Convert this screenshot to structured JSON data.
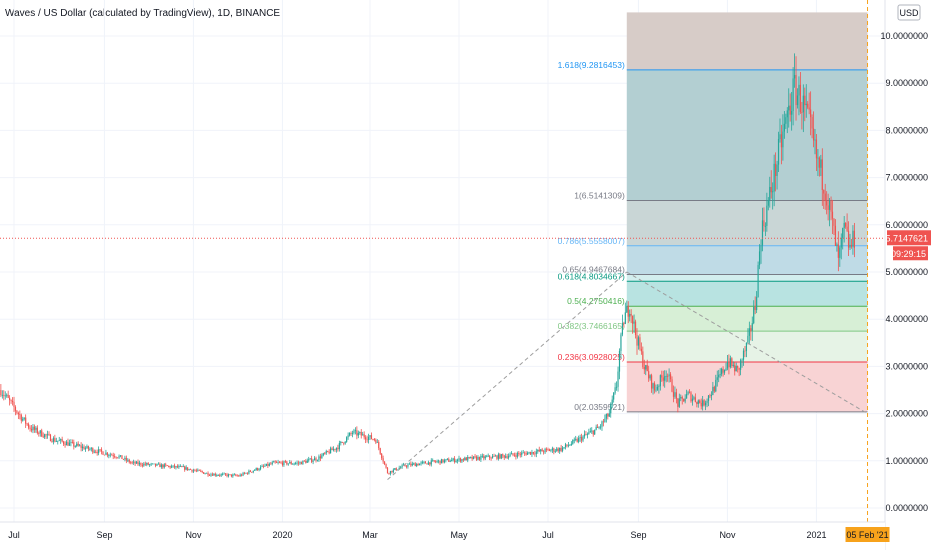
{
  "title": "Waves / US Dollar (calculated by TradingView), 1D, BINANCE",
  "colors": {
    "up": "#26a69a",
    "down": "#ef5350",
    "grid": "#f0f3fa",
    "axis_text": "#131722",
    "price_line": "#ef5350",
    "time_marker": "#f7a21b",
    "trend": "#9e9e9e"
  },
  "chart_data": {
    "type": "candlestick",
    "title": "Waves / US Dollar (calculated by TradingView), 1D, BINANCE",
    "currency_label": "USD",
    "y_axis": {
      "ylim": [
        -0.3,
        10.5
      ],
      "ticks": [
        {
          "value": 0,
          "label": "0.0000000"
        },
        {
          "value": 1,
          "label": "1.0000000"
        },
        {
          "value": 2,
          "label": "2.0000000"
        },
        {
          "value": 3,
          "label": "3.0000000"
        },
        {
          "value": 4,
          "label": "4.0000000"
        },
        {
          "value": 5,
          "label": "5.0000000"
        },
        {
          "value": 6,
          "label": "6.0000000"
        },
        {
          "value": 7,
          "label": "7.0000000"
        },
        {
          "value": 8,
          "label": "8.0000000"
        },
        {
          "value": 9,
          "label": "9.0000000"
        },
        {
          "value": 10,
          "label": "10.0000000"
        }
      ]
    },
    "x_axis": {
      "start": "2019-07-01",
      "end": "2021-02-05",
      "ticks": [
        {
          "date": "2019-07-01",
          "label": "Jul"
        },
        {
          "date": "2019-09-01",
          "label": "Sep"
        },
        {
          "date": "2019-11-01",
          "label": "Nov"
        },
        {
          "date": "2020-01-01",
          "label": "2020"
        },
        {
          "date": "2020-03-01",
          "label": "Mar"
        },
        {
          "date": "2020-05-01",
          "label": "May"
        },
        {
          "date": "2020-07-01",
          "label": "Jul"
        },
        {
          "date": "2020-09-01",
          "label": "Sep"
        },
        {
          "date": "2020-11-01",
          "label": "Nov"
        },
        {
          "date": "2021-01-01",
          "label": "2021"
        }
      ]
    },
    "price_path": [
      [
        "2019-06-22",
        2.5
      ],
      [
        "2019-07-04",
        2.0
      ],
      [
        "2019-07-12",
        1.7
      ],
      [
        "2019-07-28",
        1.45
      ],
      [
        "2019-08-15",
        1.3
      ],
      [
        "2019-09-10",
        1.1
      ],
      [
        "2019-09-20",
        0.95
      ],
      [
        "2019-10-08",
        0.9
      ],
      [
        "2019-10-25",
        0.85
      ],
      [
        "2019-11-12",
        0.72
      ],
      [
        "2019-12-02",
        0.68
      ],
      [
        "2019-12-12",
        0.8
      ],
      [
        "2019-12-26",
        0.95
      ],
      [
        "2020-01-12",
        0.95
      ],
      [
        "2020-01-25",
        1.05
      ],
      [
        "2020-02-08",
        1.3
      ],
      [
        "2020-02-18",
        1.6
      ],
      [
        "2020-03-05",
        1.45
      ],
      [
        "2020-03-13",
        0.75
      ],
      [
        "2020-03-25",
        0.9
      ],
      [
        "2020-04-15",
        0.98
      ],
      [
        "2020-05-10",
        1.05
      ],
      [
        "2020-06-01",
        1.1
      ],
      [
        "2020-06-25",
        1.2
      ],
      [
        "2020-07-10",
        1.25
      ],
      [
        "2020-07-22",
        1.45
      ],
      [
        "2020-08-05",
        1.7
      ],
      [
        "2020-08-12",
        2.0
      ],
      [
        "2020-08-17",
        2.6
      ],
      [
        "2020-08-19",
        3.3
      ],
      [
        "2020-08-22",
        4.0
      ],
      [
        "2020-08-26",
        4.3
      ],
      [
        "2020-08-30",
        3.7
      ],
      [
        "2020-09-05",
        3.0
      ],
      [
        "2020-09-12",
        2.5
      ],
      [
        "2020-09-20",
        2.9
      ],
      [
        "2020-09-28",
        2.2
      ],
      [
        "2020-10-05",
        2.4
      ],
      [
        "2020-10-15",
        2.2
      ],
      [
        "2020-10-22",
        2.5
      ],
      [
        "2020-11-01",
        3.1
      ],
      [
        "2020-11-08",
        2.9
      ],
      [
        "2020-11-15",
        3.5
      ],
      [
        "2020-11-20",
        4.3
      ],
      [
        "2020-11-24",
        5.8
      ],
      [
        "2020-11-30",
        6.6
      ],
      [
        "2020-12-06",
        7.5
      ],
      [
        "2020-12-12",
        8.3
      ],
      [
        "2020-12-17",
        8.9
      ],
      [
        "2020-12-22",
        8.6
      ],
      [
        "2020-12-27",
        8.1
      ],
      [
        "2021-01-01",
        7.4
      ],
      [
        "2021-01-07",
        6.8
      ],
      [
        "2021-01-12",
        6.0
      ],
      [
        "2021-01-16",
        5.2
      ],
      [
        "2021-01-20",
        5.9
      ],
      [
        "2021-01-24",
        5.5
      ],
      [
        "2021-01-27",
        5.7147621
      ]
    ],
    "last_price": {
      "value": 5.7147621,
      "label": "5.7147621",
      "countdown": "09:29:15"
    },
    "time_marker": {
      "date": "2021-02-05",
      "label": "05 Feb '21"
    },
    "trend_line": [
      {
        "date": "2020-03-13",
        "value": 0.6
      },
      {
        "date": "2020-08-24",
        "value": 5.0
      },
      {
        "date": "2021-02-05",
        "value": 2.0
      }
    ],
    "fibonacci": {
      "start_date": "2020-08-24",
      "end_date": "2021-02-05",
      "top_bound": 10.5,
      "levels": [
        {
          "value": 9.2816453,
          "label": "1.618(9.2816453)",
          "color": "#2196f3",
          "fill": "#d7ccc8"
        },
        {
          "value": 6.5141309,
          "label": "1(6.5141309)",
          "color": "#787b86",
          "fill": "#b3cfd2"
        },
        {
          "value": 5.5558007,
          "label": "0.786(5.5558007)",
          "color": "#64b5f6",
          "fill": "#c9d6d6"
        },
        {
          "value": 4.9467684,
          "label": "0.65(4.9467684)",
          "color": "#787b86",
          "fill": "#bfdbe6"
        },
        {
          "value": 4.8034667,
          "label": "0.618(4.8034667)",
          "color": "#089981",
          "fill": "#d3eeee"
        },
        {
          "value": 4.2750416,
          "label": "0.5(4.2750416)",
          "color": "#4caf50",
          "fill": "#b8e3e1"
        },
        {
          "value": 3.7466165,
          "label": "0.382(3.7466165)",
          "color": "#81c784",
          "fill": "#d7efd6"
        },
        {
          "value": 3.0928025,
          "label": "0.236(3.0928025)",
          "color": "#f23645",
          "fill": "#e6f3e6"
        },
        {
          "value": 2.0359521,
          "label": "0(2.0359521)",
          "color": "#787b86",
          "fill": "#f8d3d4"
        }
      ]
    }
  }
}
